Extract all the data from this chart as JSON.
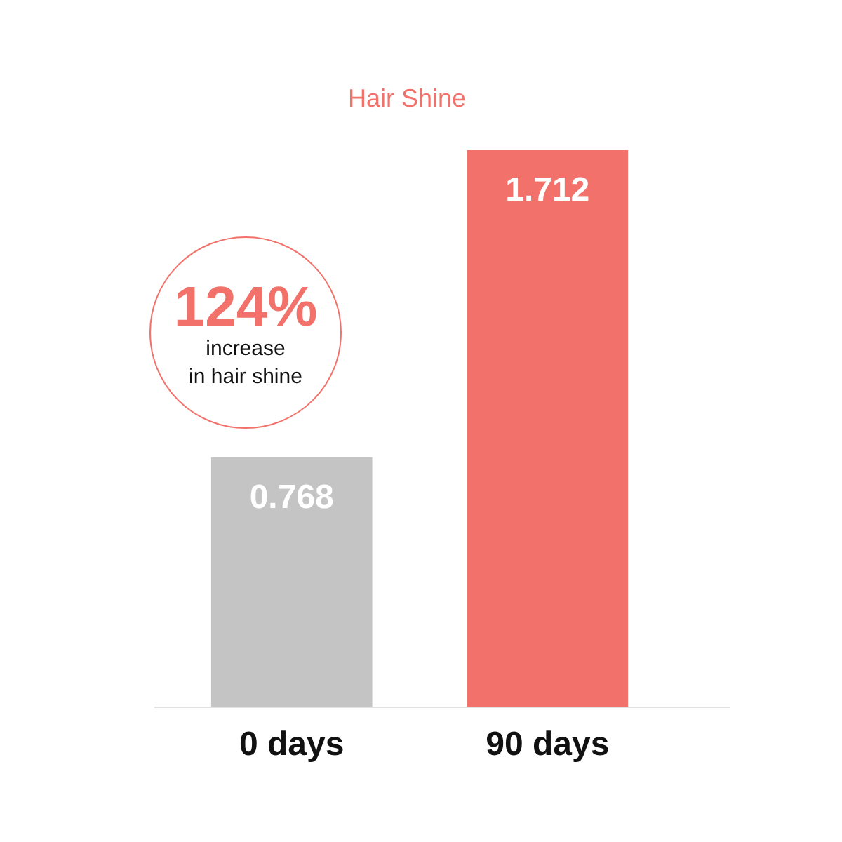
{
  "chart_data": {
    "type": "bar",
    "title": "Hair Shine",
    "categories": [
      "0 days",
      "90 days"
    ],
    "values": [
      0.768,
      1.712
    ],
    "colors": [
      "#c4c4c4",
      "#f2726b"
    ],
    "data_labels": true,
    "annotations": [
      "124%",
      "increase in hair shine"
    ]
  }
}
